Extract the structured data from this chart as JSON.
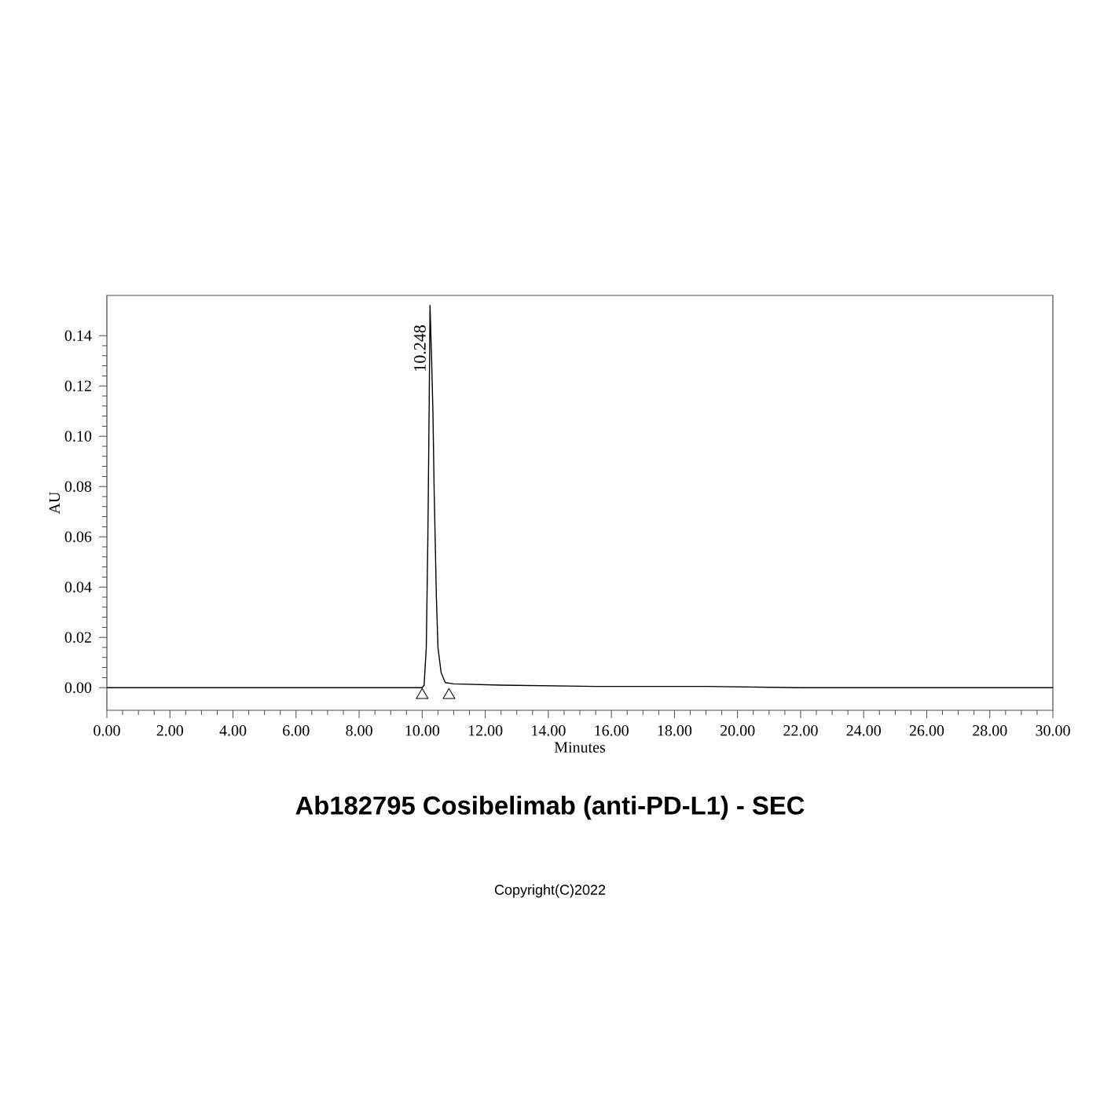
{
  "chart_data": {
    "type": "line",
    "title": "Ab182795 Cosibelimab (anti-PD-L1) - SEC",
    "xlabel": "Minutes",
    "ylabel": "AU",
    "annotations": [
      {
        "text": "10.248",
        "x": 10.248,
        "y": 0.152
      },
      "Copyright(C)2022"
    ],
    "x": [
      0,
      2,
      4,
      6,
      8,
      9.5,
      10.0,
      10.06,
      10.13,
      10.18,
      10.22,
      10.248,
      10.3,
      10.34,
      10.38,
      10.45,
      10.5,
      10.6,
      10.73,
      11.0,
      12.5,
      15.5,
      19,
      22,
      26,
      30
    ],
    "series": [
      {
        "color": "#000000",
        "values": [
          0,
          0,
          0,
          0,
          0,
          0,
          0,
          0.001,
          0.016,
          0.06,
          0.11,
          0.152,
          0.13,
          0.11,
          0.078,
          0.036,
          0.016,
          0.006,
          0.002,
          0.0015,
          0.001,
          0.0005,
          0.0005,
          0,
          0,
          0
        ]
      },
      {
        "type": "scatter",
        "x": [
          10.0,
          10.85
        ],
        "color": "#000000",
        "marker": "triangle",
        "values": [
          -0.003,
          -0.003
        ]
      }
    ],
    "xlim": [
      0,
      30
    ],
    "ylim": [
      -0.009,
      0.156
    ],
    "xticks": [
      {
        "value": 0,
        "label": "0.00"
      },
      {
        "value": 2,
        "label": "2.00"
      },
      {
        "value": 4,
        "label": "4.00"
      },
      {
        "value": 6,
        "label": "6.00"
      },
      {
        "value": 8,
        "label": "8.00"
      },
      {
        "value": 10,
        "label": "10.00"
      },
      {
        "value": 12,
        "label": "12.00"
      },
      {
        "value": 14,
        "label": "14.00"
      },
      {
        "value": 16,
        "label": "16.00"
      },
      {
        "value": 18,
        "label": "18.00"
      },
      {
        "value": 20,
        "label": "20.00"
      },
      {
        "value": 22,
        "label": "22.00"
      },
      {
        "value": 24,
        "label": "24.00"
      },
      {
        "value": 26,
        "label": "26.00"
      },
      {
        "value": 28,
        "label": "28.00"
      },
      {
        "value": 30,
        "label": "30.00"
      }
    ],
    "yticks": [
      {
        "value": 0,
        "label": "0.00"
      },
      {
        "value": 0.02,
        "label": "0.02"
      },
      {
        "value": 0.04,
        "label": "0.04"
      },
      {
        "value": 0.06,
        "label": "0.06"
      },
      {
        "value": 0.08,
        "label": "0.08"
      },
      {
        "value": 0.1,
        "label": "0.10"
      },
      {
        "value": 0.12,
        "label": "0.12"
      },
      {
        "value": 0.14,
        "label": "0.14"
      }
    ],
    "line_style": "solid"
  }
}
